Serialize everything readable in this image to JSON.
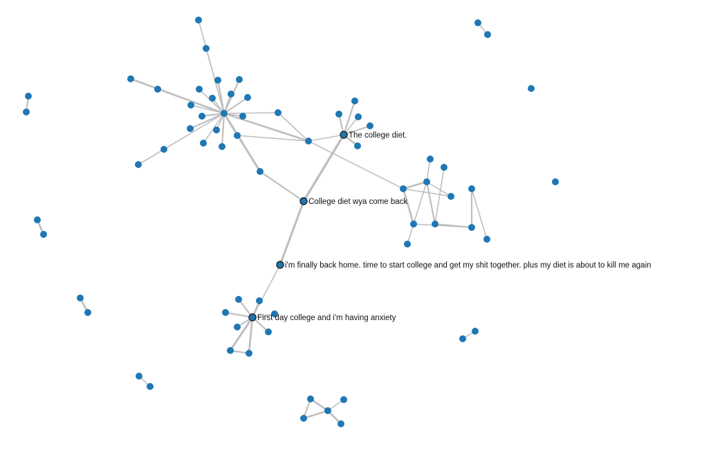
{
  "colors": {
    "node": "#1f77b4",
    "link": "#bfbfbf",
    "label": "#111111"
  },
  "graph": {
    "nodes": [
      {
        "id": "hub"
      },
      {
        "id": "a1"
      },
      {
        "id": "a2"
      },
      {
        "id": "a3"
      },
      {
        "id": "a4"
      },
      {
        "id": "a5"
      },
      {
        "id": "a6"
      },
      {
        "id": "a7"
      },
      {
        "id": "a8"
      },
      {
        "id": "a9"
      },
      {
        "id": "a10"
      },
      {
        "id": "a11"
      },
      {
        "id": "a12"
      },
      {
        "id": "a13"
      },
      {
        "id": "a14"
      },
      {
        "id": "a15"
      },
      {
        "id": "a16"
      },
      {
        "id": "a17"
      },
      {
        "id": "a18"
      },
      {
        "id": "a19"
      },
      {
        "id": "a20"
      },
      {
        "id": "a21"
      },
      {
        "id": "mid"
      },
      {
        "id": "mid2"
      },
      {
        "id": "college_diet",
        "label": "The college diet."
      },
      {
        "id": "b1"
      },
      {
        "id": "b2"
      },
      {
        "id": "b3"
      },
      {
        "id": "b4"
      },
      {
        "id": "b5"
      },
      {
        "id": "wya",
        "label": "College diet wya come back"
      },
      {
        "id": "back_home",
        "label": "i'm finally back home. time to start college and get my shit together. plus my diet is about to kill me again"
      },
      {
        "id": "first_day",
        "label": "First day college and i'm having anxiety"
      },
      {
        "id": "d1"
      },
      {
        "id": "d2"
      },
      {
        "id": "d3"
      },
      {
        "id": "d4"
      },
      {
        "id": "d5"
      },
      {
        "id": "d6"
      },
      {
        "id": "d7"
      },
      {
        "id": "d8"
      },
      {
        "id": "c0"
      },
      {
        "id": "c1"
      },
      {
        "id": "c2"
      },
      {
        "id": "c3"
      },
      {
        "id": "c4"
      },
      {
        "id": "c5"
      },
      {
        "id": "c6"
      },
      {
        "id": "c7"
      },
      {
        "id": "c8"
      },
      {
        "id": "c9"
      },
      {
        "id": "c10"
      },
      {
        "id": "e0"
      },
      {
        "id": "e1"
      },
      {
        "id": "e2"
      },
      {
        "id": "e3"
      },
      {
        "id": "e4"
      },
      {
        "id": "p1a"
      },
      {
        "id": "p1b"
      },
      {
        "id": "p2a"
      },
      {
        "id": "p2b"
      },
      {
        "id": "p3a"
      },
      {
        "id": "p3b"
      },
      {
        "id": "p4a"
      },
      {
        "id": "p4b"
      },
      {
        "id": "p5a"
      },
      {
        "id": "p5b"
      },
      {
        "id": "p6a"
      },
      {
        "id": "p6b"
      },
      {
        "id": "s1"
      },
      {
        "id": "s2"
      }
    ],
    "links": [
      {
        "source": "hub",
        "target": "a1",
        "weight": 1
      },
      {
        "source": "hub",
        "target": "a2",
        "weight": 1
      },
      {
        "source": "hub",
        "target": "a3",
        "weight": 3
      },
      {
        "source": "hub",
        "target": "a4",
        "weight": 1
      },
      {
        "source": "hub",
        "target": "a5",
        "weight": 2
      },
      {
        "source": "hub",
        "target": "a6",
        "weight": 2
      },
      {
        "source": "hub",
        "target": "a7",
        "weight": 1
      },
      {
        "source": "hub",
        "target": "a8",
        "weight": 1
      },
      {
        "source": "hub",
        "target": "a9",
        "weight": 2
      },
      {
        "source": "hub",
        "target": "a10",
        "weight": 2
      },
      {
        "source": "hub",
        "target": "a11",
        "weight": 1
      },
      {
        "source": "hub",
        "target": "a12",
        "weight": 2
      },
      {
        "source": "hub",
        "target": "a13",
        "weight": 1
      },
      {
        "source": "hub",
        "target": "a14",
        "weight": 2
      },
      {
        "source": "hub",
        "target": "a15",
        "weight": 1
      },
      {
        "source": "hub",
        "target": "a16",
        "weight": 2
      },
      {
        "source": "hub",
        "target": "a17",
        "weight": 1
      },
      {
        "source": "hub",
        "target": "a18",
        "weight": 2
      },
      {
        "source": "hub",
        "target": "a19",
        "weight": 1
      },
      {
        "source": "hub",
        "target": "a20",
        "weight": 1
      },
      {
        "source": "a19",
        "target": "a21",
        "weight": 1
      },
      {
        "source": "hub",
        "target": "mid",
        "weight": 3
      },
      {
        "source": "a16",
        "target": "mid",
        "weight": 1
      },
      {
        "source": "hub",
        "target": "mid2",
        "weight": 4
      },
      {
        "source": "mid2",
        "target": "wya",
        "weight": 2
      },
      {
        "source": "a20",
        "target": "mid",
        "weight": 1
      },
      {
        "source": "mid",
        "target": "college_diet",
        "weight": 1
      },
      {
        "source": "mid",
        "target": "c0",
        "weight": 1
      },
      {
        "source": "college_diet",
        "target": "b1",
        "weight": 2
      },
      {
        "source": "college_diet",
        "target": "b2",
        "weight": 2
      },
      {
        "source": "college_diet",
        "target": "b3",
        "weight": 1
      },
      {
        "source": "college_diet",
        "target": "b4",
        "weight": 2
      },
      {
        "source": "college_diet",
        "target": "b5",
        "weight": 3
      },
      {
        "source": "college_diet",
        "target": "wya",
        "weight": 5
      },
      {
        "source": "wya",
        "target": "back_home",
        "weight": 4
      },
      {
        "source": "back_home",
        "target": "first_day",
        "weight": 1
      },
      {
        "source": "first_day",
        "target": "d1",
        "weight": 2
      },
      {
        "source": "first_day",
        "target": "d2",
        "weight": 2
      },
      {
        "source": "first_day",
        "target": "d3",
        "weight": 1
      },
      {
        "source": "first_day",
        "target": "d4",
        "weight": 2
      },
      {
        "source": "first_day",
        "target": "d5",
        "weight": 2
      },
      {
        "source": "first_day",
        "target": "d6",
        "weight": 2
      },
      {
        "source": "first_day",
        "target": "d7",
        "weight": 4
      },
      {
        "source": "first_day",
        "target": "d8",
        "weight": 3
      },
      {
        "source": "d7",
        "target": "d8",
        "weight": 2
      },
      {
        "source": "c0",
        "target": "c1",
        "weight": 3
      },
      {
        "source": "c0",
        "target": "c3",
        "weight": 3
      },
      {
        "source": "c0",
        "target": "c2",
        "weight": 1
      },
      {
        "source": "c1",
        "target": "c2",
        "weight": 1
      },
      {
        "source": "c1",
        "target": "c3",
        "weight": 1
      },
      {
        "source": "c1",
        "target": "c4",
        "weight": 1
      },
      {
        "source": "c1",
        "target": "c6",
        "weight": 2
      },
      {
        "source": "c3",
        "target": "c5",
        "weight": 1
      },
      {
        "source": "c3",
        "target": "c8",
        "weight": 1
      },
      {
        "source": "c6",
        "target": "c7",
        "weight": 1
      },
      {
        "source": "c6",
        "target": "c8",
        "weight": 2
      },
      {
        "source": "c8",
        "target": "c9",
        "weight": 2
      },
      {
        "source": "c9",
        "target": "c10",
        "weight": 1
      },
      {
        "source": "e0",
        "target": "e1",
        "weight": 3
      },
      {
        "source": "e0",
        "target": "e2",
        "weight": 3
      },
      {
        "source": "e0",
        "target": "e3",
        "weight": 1
      },
      {
        "source": "e0",
        "target": "e4",
        "weight": 3
      },
      {
        "source": "e1",
        "target": "e2",
        "weight": 2
      },
      {
        "source": "p1a",
        "target": "p1b",
        "weight": 1
      },
      {
        "source": "p2a",
        "target": "p2b",
        "weight": 2
      },
      {
        "source": "p3a",
        "target": "p3b",
        "weight": 3
      },
      {
        "source": "p4a",
        "target": "p4b",
        "weight": 3
      },
      {
        "source": "p5a",
        "target": "p5b",
        "weight": 1
      },
      {
        "source": "p6a",
        "target": "p6b",
        "weight": 1
      }
    ]
  }
}
